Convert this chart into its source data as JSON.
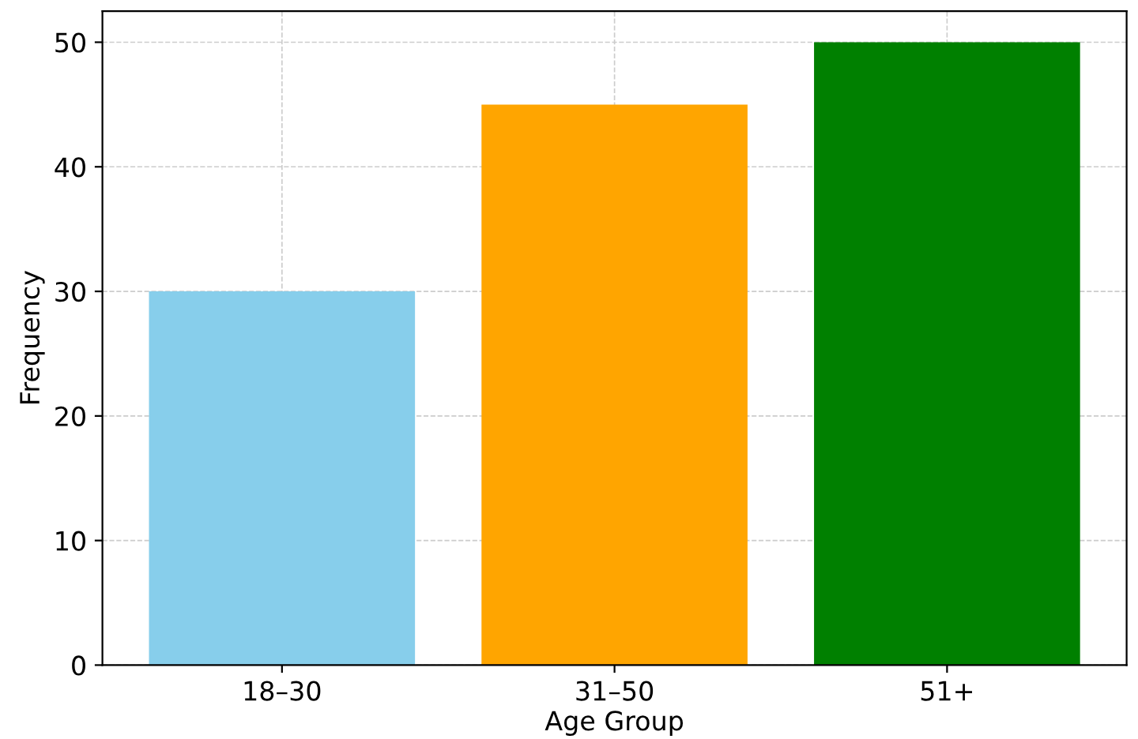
{
  "chart_data": {
    "type": "bar",
    "xlabel": "Age Group",
    "ylabel": "Frequency",
    "categories": [
      "18–30",
      "31–50",
      "51+"
    ],
    "values": [
      30,
      45,
      50
    ],
    "colors": [
      "#87ceeb",
      "#ffa500",
      "#008000"
    ],
    "ylim": [
      0,
      52.5
    ],
    "yticks": [
      0,
      10,
      20,
      30,
      40,
      50
    ],
    "grid": true
  }
}
